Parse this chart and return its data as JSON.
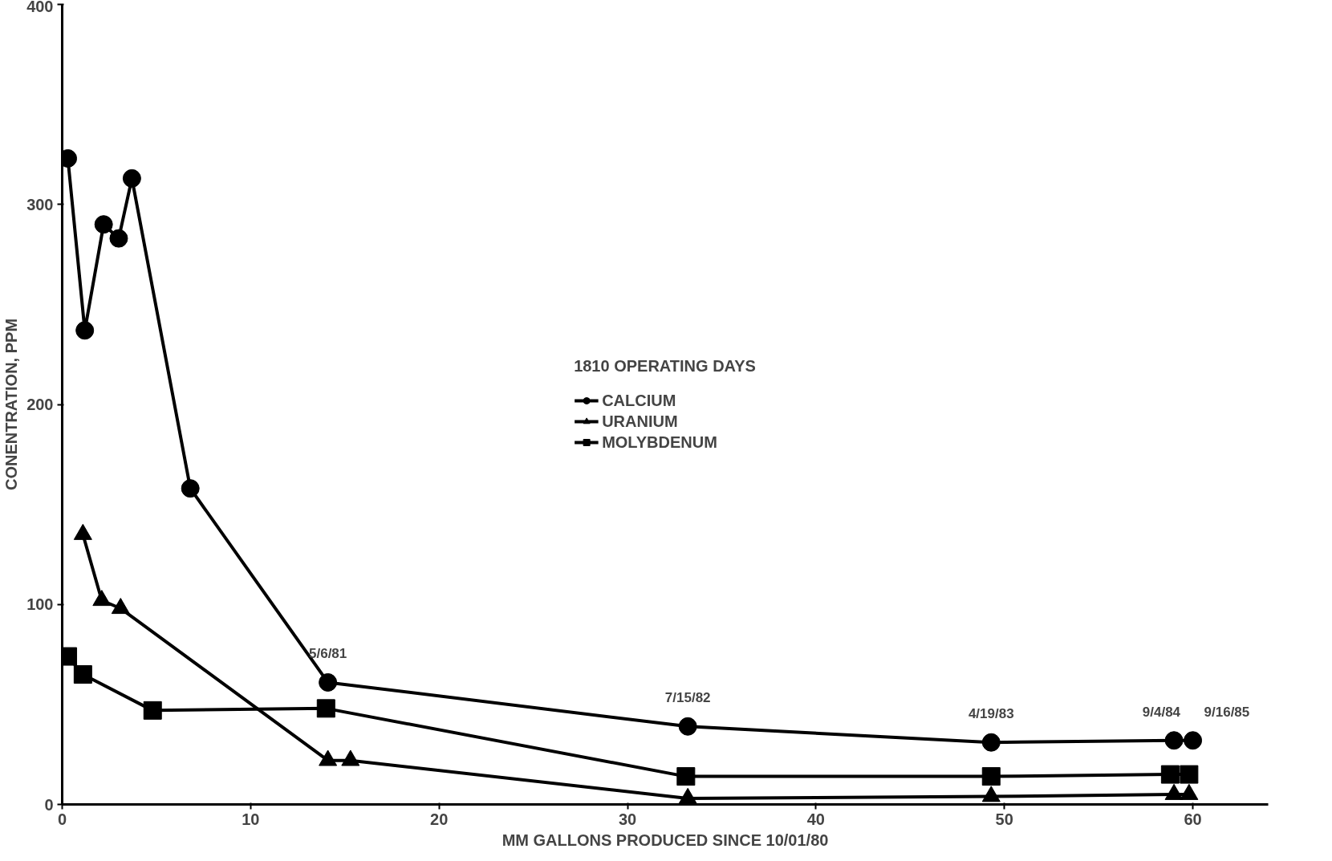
{
  "chart_data": {
    "type": "line",
    "xlabel": "MM GALLONS PRODUCED SINCE 10/01/80",
    "ylabel": "CONENTRATION, PPM",
    "legend_title": "1810 OPERATING DAYS",
    "legend": "center",
    "grid": false,
    "xlim": [
      0,
      64
    ],
    "ylim": [
      0,
      400
    ],
    "xticks": [
      0,
      10,
      20,
      30,
      40,
      50,
      60
    ],
    "yticks": [
      0,
      100,
      200,
      300,
      400
    ],
    "series": [
      {
        "name": "CALCIUM",
        "color": "#000000",
        "marker": "circle",
        "x": [
          0.3,
          1.2,
          2.2,
          3.0,
          3.7,
          6.8,
          14.1,
          33.2,
          49.3,
          59.0,
          60.0
        ],
        "values": [
          323,
          237,
          290,
          283,
          313,
          158,
          61,
          39,
          31,
          32,
          32
        ]
      },
      {
        "name": "URANIUM",
        "color": "#000000",
        "marker": "triangle",
        "x": [
          1.1,
          2.1,
          3.1,
          14.1,
          15.3,
          33.2,
          49.3,
          59.0,
          59.8
        ],
        "values": [
          135,
          102,
          98,
          22,
          22,
          3,
          4,
          5,
          5
        ]
      },
      {
        "name": "MOLYBDENUM",
        "color": "#000000",
        "marker": "square",
        "x": [
          0.3,
          1.1,
          4.8,
          14.0,
          33.1,
          49.3,
          58.8,
          59.8
        ],
        "values": [
          74,
          65,
          47,
          48,
          14,
          14,
          15,
          15
        ]
      }
    ],
    "annotations": [
      {
        "text": "5/6/81",
        "x": 14.1,
        "y": 61
      },
      {
        "text": "7/15/82",
        "x": 33.2,
        "y": 39
      },
      {
        "text": "4/19/83",
        "x": 49.3,
        "y": 31
      },
      {
        "text": "9/4/84",
        "x": 59.0,
        "y": 32
      },
      {
        "text": "9/16/85",
        "x": 60.0,
        "y": 32
      }
    ]
  }
}
